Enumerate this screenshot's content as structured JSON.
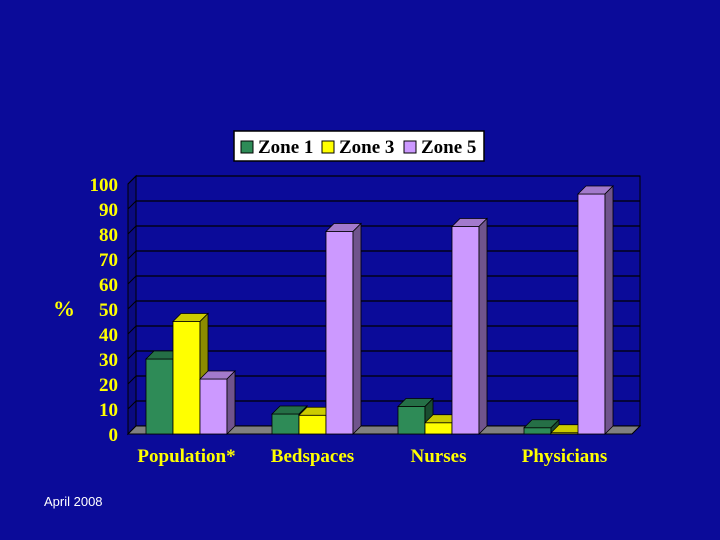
{
  "footer": {
    "date": "April 2008"
  },
  "chart_data": {
    "type": "bar",
    "style": "3d-clustered",
    "title": "",
    "xlabel": "",
    "ylabel": "%",
    "ylim": [
      0,
      100
    ],
    "yticks": [
      0,
      10,
      20,
      30,
      40,
      50,
      60,
      70,
      80,
      90,
      100
    ],
    "grid": true,
    "legend_position": "top",
    "categories": [
      "Population*",
      "Bedspaces",
      "Nurses",
      "Physicians"
    ],
    "series": [
      {
        "name": "Zone 1",
        "color": "#2E8B57",
        "values": [
          30,
          8,
          11,
          2.5
        ]
      },
      {
        "name": "Zone 3",
        "color": "#FFFF00",
        "values": [
          45,
          7.5,
          4.5,
          0.5
        ]
      },
      {
        "name": "Zone 5",
        "color": "#CC99FF",
        "values": [
          22,
          81,
          83,
          96
        ]
      }
    ],
    "colors": {
      "background": "#0B0B99",
      "plot_background": "#0B0B99",
      "grid": "#000000",
      "text": "#FFFF00",
      "legend_text": "#000000"
    }
  }
}
